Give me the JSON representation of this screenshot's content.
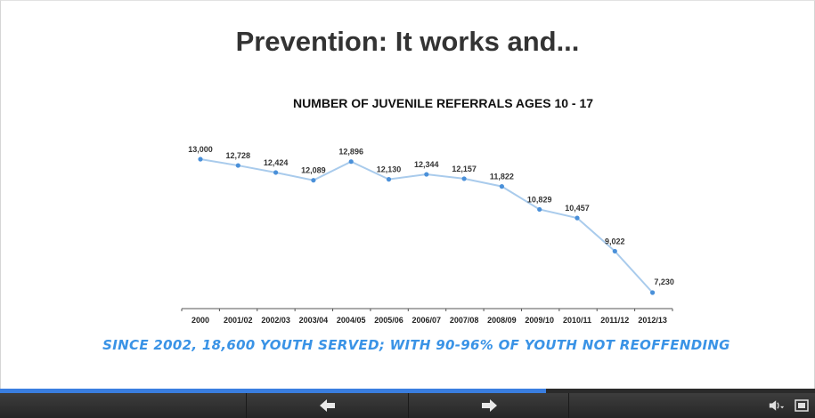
{
  "slide": {
    "title": "Prevention: It works and...",
    "caption": "SINCE 2002, 18,600 YOUTH SERVED; WITH 90-96% OF YOUTH NOT REOFFENDING"
  },
  "chart_data": {
    "type": "line",
    "title": "NUMBER OF JUVENILE REFERRALS AGES 10 - 17",
    "xlabel": "",
    "ylabel": "",
    "categories": [
      "2000",
      "2001/02",
      "2002/03",
      "2003/04",
      "2004/05",
      "2005/06",
      "2006/07",
      "2007/08",
      "2008/09",
      "2009/10",
      "2010/11",
      "2011/12",
      "2012/13"
    ],
    "series": [
      {
        "values": [
          13000,
          12728,
          12424,
          12089,
          12896,
          12130,
          12344,
          12157,
          11822,
          10829,
          10457,
          9022,
          7230
        ],
        "labels": [
          "13,000",
          "12,728",
          "12,424",
          "12,089",
          "12,896",
          "12,130",
          "12,344",
          "12,157",
          "11,822",
          "10,829",
          "10,457",
          "9,022",
          "7,230"
        ]
      }
    ],
    "ylim": [
      5000,
      13000
    ],
    "grid": false,
    "line_color": "#a9cbec",
    "marker_color": "#4a90d9"
  },
  "player": {
    "progress": 0.67,
    "progress_color": "#3a7ee0",
    "prev_icon": "arrow-left-icon",
    "next_icon": "arrow-right-icon",
    "audio_icon": "speaker-icon",
    "fullscreen_icon": "fullscreen-icon"
  }
}
